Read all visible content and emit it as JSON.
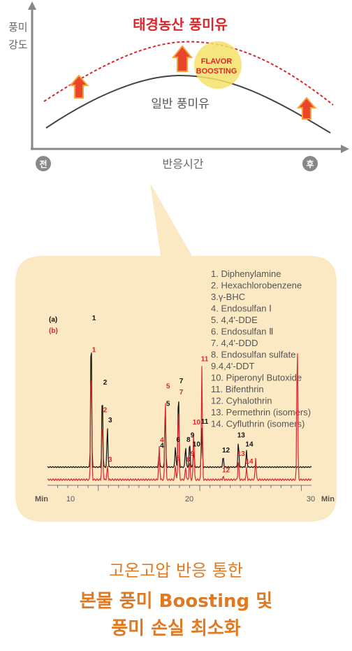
{
  "chart_data": [
    {
      "type": "line",
      "title": "",
      "ylabel": "풍미 강도",
      "xlabel": "반응시간",
      "x_tick_labels": [
        "전",
        "후"
      ],
      "series": [
        {
          "name": "태경농산 풍미유",
          "style": "dashed",
          "color": "#d9262b"
        },
        {
          "name": "일반 풍미유",
          "style": "solid",
          "color": "#444444"
        }
      ],
      "annotations": [
        "FLAVOR BOOSTING"
      ],
      "legend": "inline labels"
    },
    {
      "type": "line",
      "x_unit": "Min",
      "x_ticks": [
        10,
        20,
        30
      ],
      "xlim": [
        5,
        31
      ],
      "series": [
        {
          "name": "(a)",
          "color": "#111111"
        },
        {
          "name": "(b)",
          "color": "#d9262b"
        }
      ],
      "peaks_a": [
        {
          "label": "1",
          "x": 9.3,
          "h": 0.95
        },
        {
          "label": "2",
          "x": 10.4,
          "h": 0.52
        },
        {
          "label": "3",
          "x": 10.9,
          "h": 0.27
        },
        {
          "label": "4",
          "x": 16.0,
          "h": 0.1
        },
        {
          "label": "5",
          "x": 16.6,
          "h": 0.38
        },
        {
          "label": "6",
          "x": 17.6,
          "h": 0.14
        },
        {
          "label": "7",
          "x": 17.9,
          "h": 0.53
        },
        {
          "label": "8",
          "x": 18.6,
          "h": 0.14
        },
        {
          "label": "9",
          "x": 19.0,
          "h": 0.17
        },
        {
          "label": "10",
          "x": 19.4,
          "h": 0.11
        },
        {
          "label": "11",
          "x": 20.2,
          "h": 0.26
        },
        {
          "label": "12",
          "x": 22.3,
          "h": 0.07
        },
        {
          "label": "13",
          "x": 23.8,
          "h": 0.17
        },
        {
          "label": "14",
          "x": 24.6,
          "h": 0.11
        }
      ],
      "peaks_b": [
        {
          "label": "1",
          "x": 9.3,
          "h": 0.82
        },
        {
          "label": "2",
          "x": 10.4,
          "h": 0.42
        },
        {
          "label": "3",
          "x": 10.9,
          "h": 0.09
        },
        {
          "label": "4",
          "x": 16.0,
          "h": 0.22
        },
        {
          "label": "5",
          "x": 16.6,
          "h": 0.58
        },
        {
          "label": "6",
          "x": 17.6,
          "h": 0.1
        },
        {
          "label": "7",
          "x": 17.9,
          "h": 0.54
        },
        {
          "label": "8",
          "x": 18.6,
          "h": 0.09
        },
        {
          "label": "9",
          "x": 19.0,
          "h": 0.13
        },
        {
          "label": "10",
          "x": 19.4,
          "h": 0.34
        },
        {
          "label": "11",
          "x": 20.2,
          "h": 0.76
        },
        {
          "label": "12",
          "x": 22.3,
          "h": 0.02
        },
        {
          "label": "13",
          "x": 23.8,
          "h": 0.13
        },
        {
          "label": "14",
          "x": 24.6,
          "h": 0.08
        },
        {
          "label": "",
          "x": 25.5,
          "h": 0.15
        },
        {
          "label": "",
          "x": 29.6,
          "h": 0.95
        }
      ]
    }
  ],
  "top_chart": {
    "ylabel_line1": "풍미",
    "ylabel_line2": "강도",
    "series_top_label": "태경농산 풍미유",
    "series_bottom_label": "일반 풍미유",
    "badge_line1": "FLAVOR",
    "badge_line2": "BOOSTING",
    "xlabel": "반응시간",
    "x_start": "전",
    "x_end": "후"
  },
  "chromatogram": {
    "trace_a_label": "(a)",
    "trace_b_label": "(b)",
    "axis_left_unit": "Min",
    "axis_right_unit": "Min",
    "tick_10": "10",
    "tick_20": "20",
    "tick_30": "30",
    "legend": [
      "1. Diphenylamine",
      "2. Hexachlorobenzene",
      "3.γ-BHC",
      "4. Endosulfan Ⅰ",
      "5. 4,4'-DDE",
      "6. Endosulfan Ⅱ",
      "7. 4,4'-DDD",
      "8. Endosulfan sulfate",
      "9.4,4'-DDT",
      "10. Piperonyl Butoxide",
      "11. Bifenthrin",
      "12. Cyhalothrin",
      "13. Permethrin (isomers)",
      "14. Cyfluthrin (isomers)"
    ]
  },
  "caption": {
    "line1": "고온고압 반응 통한",
    "line2": "본물 풍미 Boosting 및",
    "line3": "풍미 손실 최소화"
  },
  "colors": {
    "red": "#d9262b",
    "orange": "#e07a22",
    "panel": "#fbe9c3",
    "badge": "#f4e26a"
  }
}
